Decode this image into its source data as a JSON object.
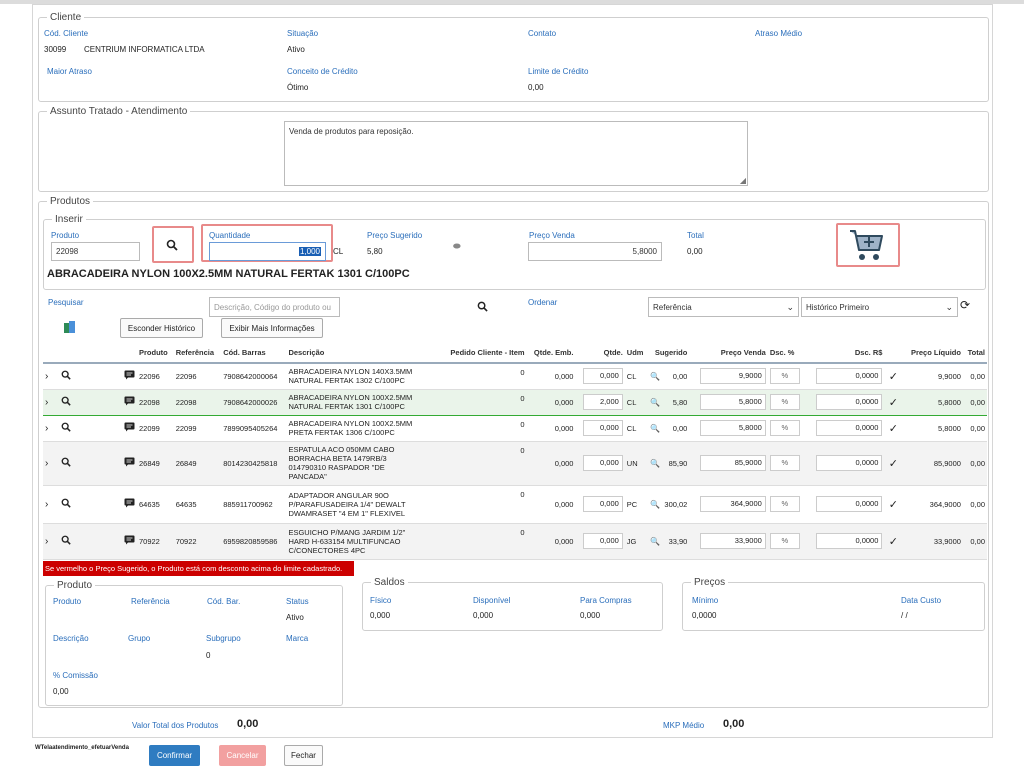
{
  "cliente": {
    "legend": "Cliente",
    "cod_label": "Cód. Cliente",
    "cod_value": "30099",
    "nome_value": "CENTRIUM INFORMATICA LTDA",
    "situacao_label": "Situação",
    "situacao_value": "Ativo",
    "contato_label": "Contato",
    "atraso_medio_label": "Atraso Médio",
    "maior_atraso_label": "Maior Atraso",
    "conceito_label": "Conceito de Crédito",
    "conceito_value": "Ótimo",
    "limite_label": "Limite de Crédito",
    "limite_value": "0,00"
  },
  "assunto": {
    "legend": "Assunto Tratado - Atendimento",
    "text": "Venda de produtos para reposição."
  },
  "produtos": {
    "legend": "Produtos",
    "inserir": {
      "legend": "Inserir",
      "produto_label": "Produto",
      "produto_value": "22098",
      "quantidade_label": "Quantidade",
      "quantidade_value": "1,000",
      "udm": "CL",
      "preco_sugerido_label": "Preço Sugerido",
      "preco_sugerido_value": "5,80",
      "preco_venda_label": "Preço Venda",
      "preco_venda_value": "5,8000",
      "total_label": "Total",
      "total_value": "0,00",
      "product_name": "ABRACADEIRA NYLON 100X2.5MM NATURAL FERTAK 1301 C/100PC"
    },
    "pesquisar_label": "Pesquisar",
    "search_placeholder": "Descrição, Código do produto ou",
    "ordenar_label": "Ordenar",
    "ordenar_value": "Referência",
    "historico_value": "Histórico Primeiro",
    "esconder_label": "Esconder Histórico",
    "exibir_label": "Exibir Mais Informações",
    "headers": [
      "Produto",
      "Referência",
      "Cód. Barras",
      "Descrição",
      "Pedido Cliente - Item",
      "Qtde. Emb.",
      "Qtde.",
      "Udm",
      "Sugerido",
      "Preço Venda",
      "Dsc. %",
      "Dsc. R$",
      "Preço Líquido",
      "Total"
    ],
    "rows": [
      {
        "produto": "22096",
        "ref": "22096",
        "barras": "7908642000064",
        "desc": "ABRACADEIRA NYLON 140X3.5MM NATURAL FERTAK 1302 C/100PC",
        "pedido": "0",
        "emb": "0,000",
        "qtde": "0,000",
        "udm": "CL",
        "sug": "0,00",
        "venda": "9,9000",
        "dscp": "%",
        "dscr": "0,0000",
        "liq": "9,9000",
        "total": "0,00"
      },
      {
        "produto": "22098",
        "ref": "22098",
        "barras": "7908642000026",
        "desc": "ABRACADEIRA NYLON 100X2.5MM NATURAL FERTAK 1301 C/100PC",
        "pedido": "0",
        "emb": "0,000",
        "qtde": "2,000",
        "udm": "CL",
        "sug": "5,80",
        "venda": "5,8000",
        "dscp": "%",
        "dscr": "0,0000",
        "liq": "5,8000",
        "total": "0,00"
      },
      {
        "produto": "22099",
        "ref": "22099",
        "barras": "7899095405264",
        "desc": "ABRACADEIRA NYLON 100X2.5MM PRETA FERTAK 1306 C/100PC",
        "pedido": "0",
        "emb": "0,000",
        "qtde": "0,000",
        "udm": "CL",
        "sug": "0,00",
        "venda": "5,8000",
        "dscp": "%",
        "dscr": "0,0000",
        "liq": "5,8000",
        "total": "0,00"
      },
      {
        "produto": "26849",
        "ref": "26849",
        "barras": "8014230425818",
        "desc": "ESPATULA ACO 050MM CABO BORRACHA BETA 1479RB/3 014790310 RASPADOR \"DE PANCADA\"",
        "pedido": "0",
        "emb": "0,000",
        "qtde": "0,000",
        "udm": "UN",
        "sug": "85,90",
        "venda": "85,9000",
        "dscp": "%",
        "dscr": "0,0000",
        "liq": "85,9000",
        "total": "0,00"
      },
      {
        "produto": "64635",
        "ref": "64635",
        "barras": "885911700962",
        "desc": "ADAPTADOR ANGULAR 90O P/PARAFUSADEIRA 1/4\" DEWALT DWAMRASET \"4 EM 1\" FLEXIVEL",
        "pedido": "0",
        "emb": "0,000",
        "qtde": "0,000",
        "udm": "PC",
        "sug": "300,02",
        "venda": "364,9000",
        "dscp": "%",
        "dscr": "0,0000",
        "liq": "364,9000",
        "total": "0,00"
      },
      {
        "produto": "70922",
        "ref": "70922",
        "barras": "6959820859586",
        "desc": "ESGUICHO P/MANG JARDIM 1/2\" HARD H-633154 MULTIFUNCAO C/CONECTORES 4PC",
        "pedido": "0",
        "emb": "0,000",
        "qtde": "0,000",
        "udm": "JG",
        "sug": "33,90",
        "venda": "33,9000",
        "dscp": "%",
        "dscr": "0,0000",
        "liq": "33,9000",
        "total": "0,00"
      }
    ],
    "warning": "Se vermelho o Preço Sugerido, o Produto está com desconto acima do limite cadastrado."
  },
  "detalhe": {
    "legend": "Produto",
    "produto_label": "Produto",
    "referencia_label": "Referência",
    "codbar_label": "Cód. Bar.",
    "status_label": "Status",
    "status_value": "Ativo",
    "descricao_label": "Descrição",
    "grupo_label": "Grupo",
    "subgrupo_label": "Subgrupo",
    "subgrupo_value": "0",
    "marca_label": "Marca",
    "comissao_label": "% Comissão",
    "comissao_value": "0,00"
  },
  "saldos": {
    "legend": "Saldos",
    "fisico_label": "Físico",
    "fisico_value": "0,000",
    "disponivel_label": "Disponível",
    "disponivel_value": "0,000",
    "compras_label": "Para Compras",
    "compras_value": "0,000"
  },
  "precos": {
    "legend": "Preços",
    "minimo_label": "Mínimo",
    "minimo_value": "0,0000",
    "custo_label": "Data Custo",
    "custo_value": "/ /"
  },
  "footer": {
    "valor_total_label": "Valor Total dos Produtos",
    "valor_total_value": "0,00",
    "mkp_label": "MKP Médio",
    "mkp_value": "0,00",
    "form_name": "WTelaatendimento_efetuarVenda",
    "confirmar": "Confirmar",
    "cancelar": "Cancelar",
    "fechar": "Fechar"
  },
  "colors": {
    "link_blue": "#2a6ebb",
    "warning_red": "#cc0000",
    "highlight": "#e88a8a",
    "confirm": "#2f7cc1"
  },
  "icons": [
    "search-icon",
    "cart-plus-icon",
    "chevron-right-icon",
    "message-icon",
    "check-icon",
    "sort-refresh-icon",
    "chevron-down-icon",
    "excel-icon",
    "zoom-icon"
  ]
}
